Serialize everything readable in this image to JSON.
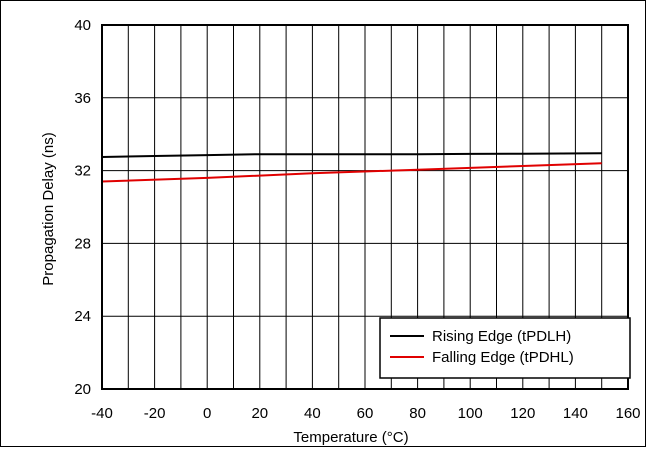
{
  "chart_data": {
    "type": "line",
    "xlabel": "Temperature (°C)",
    "ylabel": "Propagation Delay (ns)",
    "xlim": [
      -40,
      160
    ],
    "ylim": [
      20,
      40
    ],
    "x_ticks": [
      "-40",
      "-20",
      "0",
      "20",
      "40",
      "60",
      "80",
      "100",
      "120",
      "140",
      "160"
    ],
    "y_ticks": [
      "20",
      "24",
      "28",
      "32",
      "36",
      "40"
    ],
    "grid": true,
    "legend_position": "bottom-right",
    "series": [
      {
        "name": "Rising Edge (tPDLH)",
        "color": "#000000",
        "x": [
          -40,
          -20,
          0,
          20,
          40,
          60,
          80,
          100,
          120,
          150
        ],
        "y": [
          32.75,
          32.8,
          32.85,
          32.9,
          32.9,
          32.9,
          32.9,
          32.92,
          32.93,
          32.95
        ]
      },
      {
        "name": "Falling Edge (tPDHL)",
        "color": "#e00000",
        "x": [
          -40,
          0,
          40,
          80,
          120,
          150
        ],
        "y": [
          31.4,
          31.6,
          31.85,
          32.05,
          32.25,
          32.4
        ]
      }
    ]
  }
}
